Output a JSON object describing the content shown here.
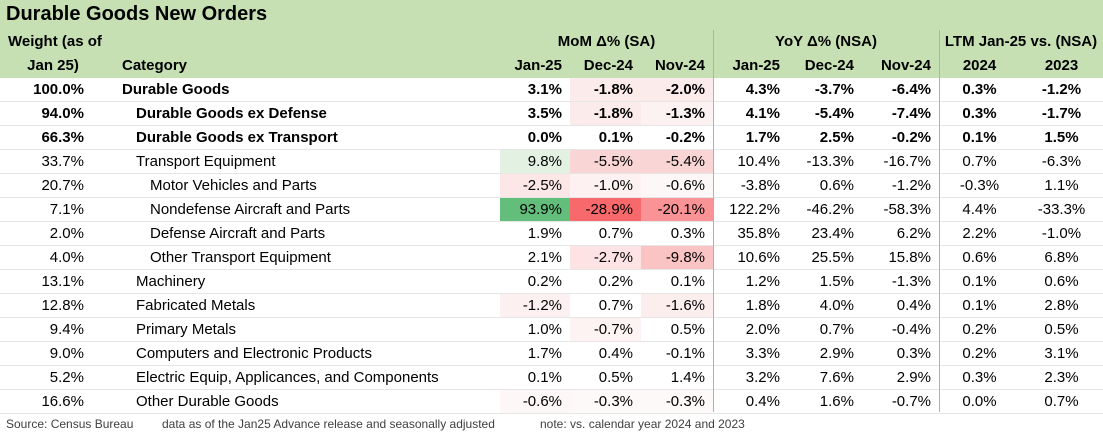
{
  "title": "Durable Goods New Orders",
  "header": {
    "weight_line1": "Weight (as of",
    "weight_line2": "Jan 25)",
    "category": "Category",
    "mom_group": "MoM Δ% (SA)",
    "yoy_group": "YoY Δ% (NSA)",
    "ltm_group": "LTM Jan-25 vs. (NSA)",
    "columns": [
      "Jan-25",
      "Dec-24",
      "Nov-24",
      "Jan-25",
      "Dec-24",
      "Nov-24",
      "2024",
      "2023"
    ]
  },
  "rows": [
    {
      "weight": "100.0%",
      "category": "Durable Goods",
      "indent": 0,
      "bold": true,
      "values": [
        "3.1%",
        "-1.8%",
        "-2.0%",
        "4.3%",
        "-3.7%",
        "-6.4%",
        "0.3%",
        "-1.2%"
      ],
      "mom_colors": [
        "#ffffff",
        "#fcebeb",
        "#fcebeb"
      ]
    },
    {
      "weight": "94.0%",
      "category": "Durable Goods ex Defense",
      "indent": 1,
      "bold": true,
      "values": [
        "3.5%",
        "-1.8%",
        "-1.3%",
        "4.1%",
        "-5.4%",
        "-7.4%",
        "0.3%",
        "-1.7%"
      ],
      "mom_colors": [
        "#ffffff",
        "#fcebeb",
        "#fcf2f2"
      ]
    },
    {
      "weight": "66.3%",
      "category": "Durable Goods ex Transport",
      "indent": 1,
      "bold": true,
      "values": [
        "0.0%",
        "0.1%",
        "-0.2%",
        "1.7%",
        "2.5%",
        "-0.2%",
        "0.1%",
        "1.5%"
      ],
      "mom_colors": [
        "#ffffff",
        "#ffffff",
        "#ffffff"
      ]
    },
    {
      "weight": "33.7%",
      "category": "Transport Equipment",
      "indent": 1,
      "bold": false,
      "values": [
        "9.8%",
        "-5.5%",
        "-5.4%",
        "10.4%",
        "-13.3%",
        "-16.7%",
        "0.7%",
        "-6.3%"
      ],
      "mom_colors": [
        "#e2f1e2",
        "#f9d5d5",
        "#f9d5d5"
      ]
    },
    {
      "weight": "20.7%",
      "category": "Motor Vehicles and Parts",
      "indent": 2,
      "bold": false,
      "values": [
        "-2.5%",
        "-1.0%",
        "-0.6%",
        "-3.8%",
        "0.6%",
        "-1.2%",
        "-0.3%",
        "1.1%"
      ],
      "mom_colors": [
        "#fce6e6",
        "#fdf1f1",
        "#fdf7f7"
      ]
    },
    {
      "weight": "7.1%",
      "category": "Nondefense Aircraft and Parts",
      "indent": 2,
      "bold": false,
      "values": [
        "93.9%",
        "-28.9%",
        "-20.1%",
        "122.2%",
        "-46.2%",
        "-58.3%",
        "4.4%",
        "-33.3%"
      ],
      "mom_colors": [
        "#63be7b",
        "#f8696b",
        "#f99395"
      ]
    },
    {
      "weight": "2.0%",
      "category": "Defense Aircraft and Parts",
      "indent": 2,
      "bold": false,
      "values": [
        "1.9%",
        "0.7%",
        "0.3%",
        "35.8%",
        "23.4%",
        "6.2%",
        "2.2%",
        "-1.0%"
      ],
      "mom_colors": [
        "#ffffff",
        "#ffffff",
        "#ffffff"
      ]
    },
    {
      "weight": "4.0%",
      "category": "Other Transport Equipment",
      "indent": 2,
      "bold": false,
      "values": [
        "2.1%",
        "-2.7%",
        "-9.8%",
        "10.6%",
        "25.5%",
        "15.8%",
        "0.6%",
        "6.8%"
      ],
      "mom_colors": [
        "#ffffff",
        "#fde3e3",
        "#fac3c4"
      ]
    },
    {
      "weight": "13.1%",
      "category": "Machinery",
      "indent": 1,
      "bold": false,
      "values": [
        "0.2%",
        "0.2%",
        "0.1%",
        "1.2%",
        "1.5%",
        "-1.3%",
        "0.1%",
        "0.6%"
      ],
      "mom_colors": [
        "#ffffff",
        "#ffffff",
        "#ffffff"
      ]
    },
    {
      "weight": "12.8%",
      "category": "Fabricated Metals",
      "indent": 1,
      "bold": false,
      "values": [
        "-1.2%",
        "0.7%",
        "-1.6%",
        "1.8%",
        "4.0%",
        "0.4%",
        "0.1%",
        "2.8%"
      ],
      "mom_colors": [
        "#fdf0f0",
        "#ffffff",
        "#fdeeee"
      ]
    },
    {
      "weight": "9.4%",
      "category": "Primary Metals",
      "indent": 1,
      "bold": false,
      "values": [
        "1.0%",
        "-0.7%",
        "0.5%",
        "2.0%",
        "0.7%",
        "-0.4%",
        "0.2%",
        "0.5%"
      ],
      "mom_colors": [
        "#ffffff",
        "#fdf3f3",
        "#ffffff"
      ]
    },
    {
      "weight": "9.0%",
      "category": "Computers and Electronic Products",
      "indent": 1,
      "bold": false,
      "values": [
        "1.7%",
        "0.4%",
        "-0.1%",
        "3.3%",
        "2.9%",
        "0.3%",
        "0.2%",
        "3.1%"
      ],
      "mom_colors": [
        "#ffffff",
        "#ffffff",
        "#ffffff"
      ]
    },
    {
      "weight": "5.2%",
      "category": "Electric Equip, Applicances, and Components",
      "indent": 1,
      "bold": false,
      "values": [
        "0.1%",
        "0.5%",
        "1.4%",
        "3.2%",
        "7.6%",
        "2.9%",
        "0.3%",
        "2.3%"
      ],
      "mom_colors": [
        "#ffffff",
        "#ffffff",
        "#ffffff"
      ]
    },
    {
      "weight": "16.6%",
      "category": "Other Durable Goods",
      "indent": 1,
      "bold": false,
      "values": [
        "-0.6%",
        "-0.3%",
        "-0.3%",
        "0.4%",
        "1.6%",
        "-0.7%",
        "0.0%",
        "0.7%"
      ],
      "mom_colors": [
        "#fdf7f7",
        "#fdf9f9",
        "#fdf9f9"
      ]
    }
  ],
  "footer": {
    "source": "Source: Census Bureau",
    "note1": "data as of the Jan25 Advance release and seasonally adjusted",
    "note2": "note: vs. calendar year 2024 and 2023"
  }
}
